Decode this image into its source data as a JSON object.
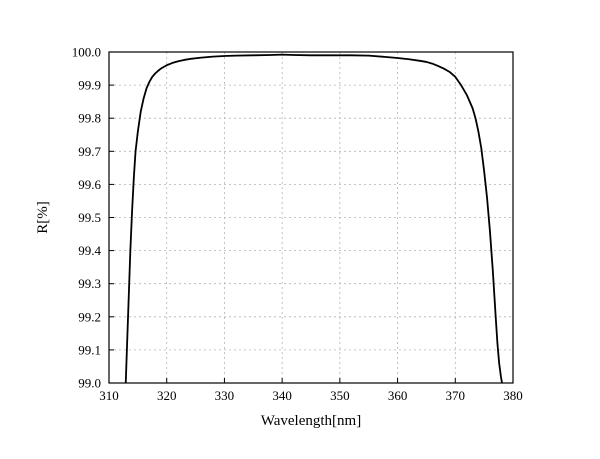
{
  "chart_data": {
    "type": "line",
    "xlabel": "Wavelength[nm]",
    "ylabel": "R[%]",
    "xlim": [
      310,
      380
    ],
    "ylim": [
      99.0,
      100.0
    ],
    "x_ticks": [
      310,
      320,
      330,
      340,
      350,
      360,
      370,
      380
    ],
    "x_tick_labels": [
      "310",
      "320",
      "330",
      "340",
      "350",
      "360",
      "370",
      "380"
    ],
    "y_ticks": [
      99.0,
      99.1,
      99.2,
      99.3,
      99.4,
      99.5,
      99.6,
      99.7,
      99.8,
      99.9,
      100.0
    ],
    "y_tick_labels": [
      "99.0",
      "99.1",
      "99.2",
      "99.3",
      "99.4",
      "99.5",
      "99.6",
      "99.7",
      "99.8",
      "99.9",
      "100.0"
    ],
    "grid": true,
    "legend": "none",
    "series": [
      {
        "color": "#000000",
        "x": [
          312.9,
          313.1,
          313.4,
          313.7,
          314.0,
          314.3,
          314.6,
          315.0,
          315.5,
          316.0,
          316.5,
          317.0,
          317.5,
          318.0,
          318.5,
          319.0,
          319.5,
          320.0,
          321.0,
          322.0,
          323.0,
          324.0,
          326.0,
          328.0,
          330.0,
          332.0,
          335.0,
          338.0,
          340.0,
          342.0,
          345.0,
          348.0,
          350.0,
          352.0,
          355.0,
          358.0,
          360.0,
          362.0,
          364.0,
          365.0,
          366.0,
          367.0,
          368.0,
          369.0,
          370.0,
          371.0,
          372.0,
          373.0,
          373.5,
          374.0,
          374.5,
          375.0,
          375.5,
          376.0,
          376.5,
          377.0,
          377.3,
          377.6,
          377.9,
          378.1
        ],
        "y": [
          99.0,
          99.1,
          99.25,
          99.4,
          99.52,
          99.62,
          99.7,
          99.76,
          99.82,
          99.86,
          99.89,
          99.91,
          99.925,
          99.935,
          99.943,
          99.95,
          99.955,
          99.96,
          99.967,
          99.972,
          99.976,
          99.979,
          99.983,
          99.986,
          99.988,
          99.989,
          99.99,
          99.991,
          99.992,
          99.991,
          99.99,
          99.99,
          99.99,
          99.99,
          99.989,
          99.985,
          99.982,
          99.978,
          99.973,
          99.97,
          99.965,
          99.958,
          99.95,
          99.94,
          99.925,
          99.9,
          99.87,
          99.83,
          99.8,
          99.76,
          99.71,
          99.64,
          99.56,
          99.46,
          99.34,
          99.2,
          99.12,
          99.06,
          99.02,
          99.0
        ]
      }
    ]
  }
}
